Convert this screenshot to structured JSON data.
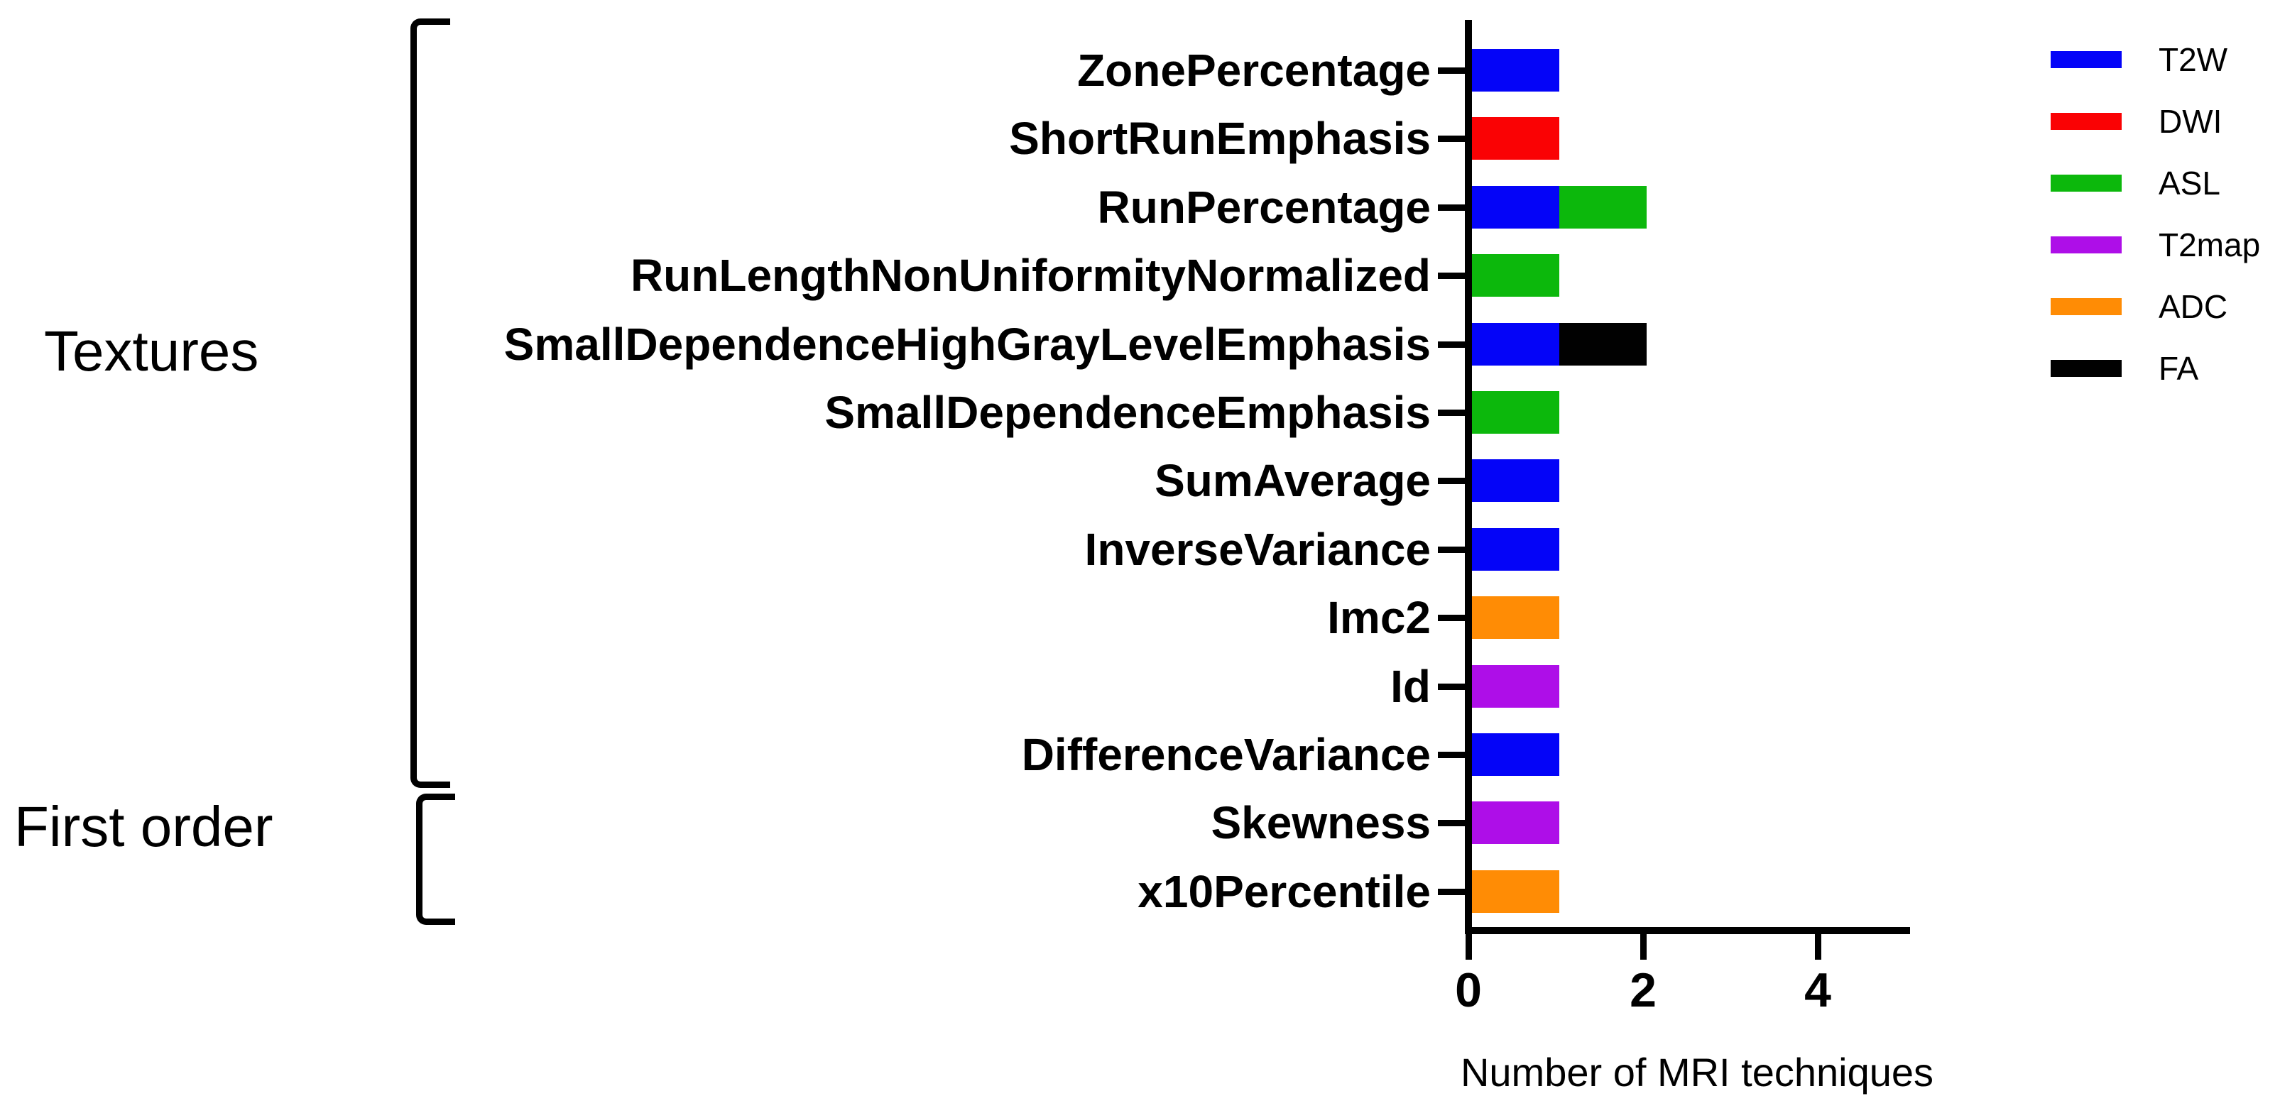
{
  "chart_data": {
    "type": "bar",
    "orientation": "horizontal-stacked",
    "title": "",
    "xlabel": "Number of MRI techniques",
    "ylabel": "",
    "x_ticks": [
      "0",
      "2",
      "4"
    ],
    "xlim": [
      0,
      5.1
    ],
    "grid": false,
    "legend_position": "top-right",
    "legend": [
      {
        "label": "T2W",
        "color": "#0404F8"
      },
      {
        "label": "DWI",
        "color": "#FA0204"
      },
      {
        "label": "ASL",
        "color": "#0CB80C"
      },
      {
        "label": "T2map",
        "color": "#AE0EE8"
      },
      {
        "label": "ADC",
        "color": "#FF8C05"
      },
      {
        "label": "FA",
        "color": "#010101"
      }
    ],
    "groups": [
      {
        "label": "Textures",
        "first_category": "ZonePercentage",
        "last_category": "DifferenceVariance"
      },
      {
        "label": "First order",
        "first_category": "Skewness",
        "last_category": "x10Percentile"
      }
    ],
    "categories": [
      "ZonePercentage",
      "ShortRunEmphasis",
      "RunPercentage",
      "RunLengthNonUniformityNormalized",
      "SmallDependenceHighGrayLevelEmphasis",
      "SmallDependenceEmphasis",
      "SumAverage",
      "InverseVariance",
      "Imc2",
      "Id",
      "DifferenceVariance",
      "Skewness",
      "x10Percentile"
    ],
    "bars": [
      {
        "category": "ZonePercentage",
        "total": 1,
        "segments": [
          {
            "technique": "T2W",
            "value": 1
          }
        ]
      },
      {
        "category": "ShortRunEmphasis",
        "total": 1,
        "segments": [
          {
            "technique": "DWI",
            "value": 1
          }
        ]
      },
      {
        "category": "RunPercentage",
        "total": 2,
        "segments": [
          {
            "technique": "T2W",
            "value": 1
          },
          {
            "technique": "ASL",
            "value": 1
          }
        ]
      },
      {
        "category": "RunLengthNonUniformityNormalized",
        "total": 1,
        "segments": [
          {
            "technique": "ASL",
            "value": 1
          }
        ]
      },
      {
        "category": "SmallDependenceHighGrayLevelEmphasis",
        "total": 2,
        "segments": [
          {
            "technique": "T2W",
            "value": 1
          },
          {
            "technique": "FA",
            "value": 1
          }
        ]
      },
      {
        "category": "SmallDependenceEmphasis",
        "total": 1,
        "segments": [
          {
            "technique": "ASL",
            "value": 1
          }
        ]
      },
      {
        "category": "SumAverage",
        "total": 1,
        "segments": [
          {
            "technique": "T2W",
            "value": 1
          }
        ]
      },
      {
        "category": "InverseVariance",
        "total": 1,
        "segments": [
          {
            "technique": "T2W",
            "value": 1
          }
        ]
      },
      {
        "category": "Imc2",
        "total": 1,
        "segments": [
          {
            "technique": "ADC",
            "value": 1
          }
        ]
      },
      {
        "category": "Id",
        "total": 1,
        "segments": [
          {
            "technique": "T2map",
            "value": 1
          }
        ]
      },
      {
        "category": "DifferenceVariance",
        "total": 1,
        "segments": [
          {
            "technique": "T2W",
            "value": 1
          }
        ]
      },
      {
        "category": "Skewness",
        "total": 1,
        "segments": [
          {
            "technique": "T2map",
            "value": 1
          }
        ]
      },
      {
        "category": "x10Percentile",
        "total": 1,
        "segments": [
          {
            "technique": "ADC",
            "value": 1
          }
        ]
      }
    ]
  }
}
